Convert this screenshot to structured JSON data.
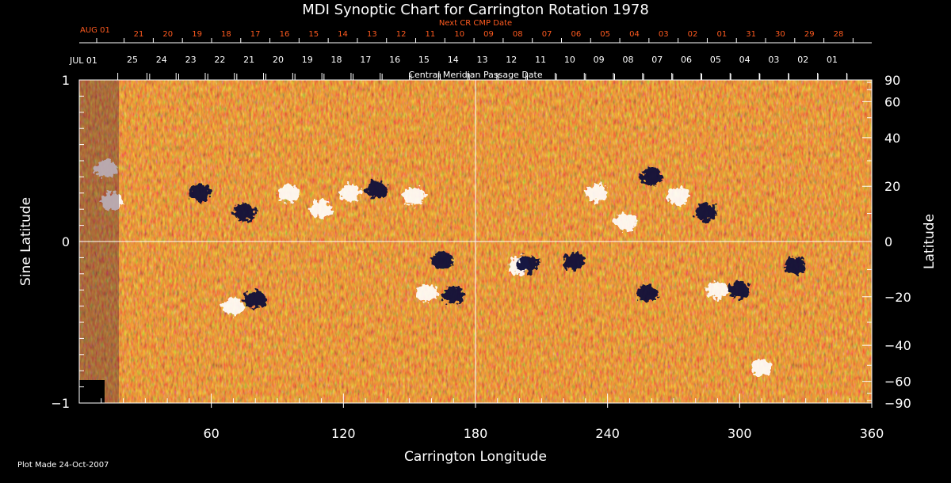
{
  "chart_data": {
    "type": "heatmap",
    "title": "MDI Synoptic Chart for Carrington Rotation 1978",
    "xlabel": "Carrington Longitude",
    "ylabel_left": "Sine Latitude",
    "ylabel_right": "Latitude",
    "xlim": [
      0,
      360
    ],
    "ylim": [
      -1,
      1
    ],
    "x_ticks": [
      60,
      120,
      180,
      240,
      300,
      360
    ],
    "y_ticks_left": [
      {
        "v": 1,
        "label": "1"
      },
      {
        "v": 0,
        "label": "0"
      },
      {
        "v": -1,
        "label": "−1"
      }
    ],
    "y_ticks_right": [
      {
        "deg": 90,
        "label": "90"
      },
      {
        "deg": 60,
        "label": "60"
      },
      {
        "deg": 40,
        "label": "40"
      },
      {
        "deg": 20,
        "label": "20"
      },
      {
        "deg": 0,
        "label": "0"
      },
      {
        "deg": -20,
        "label": "−20"
      },
      {
        "deg": -40,
        "label": "−40"
      },
      {
        "deg": -60,
        "label": "−60"
      },
      {
        "deg": -90,
        "label": "−90"
      }
    ],
    "top_axis_next": {
      "title": "Next CR CMP Date",
      "month_label": "AUG 01",
      "labels": [
        "21",
        "20",
        "19",
        "18",
        "17",
        "16",
        "15",
        "14",
        "13",
        "12",
        "11",
        "10",
        "09",
        "08",
        "07",
        "06",
        "05",
        "04",
        "03",
        "02",
        "01",
        "31",
        "30",
        "29",
        "28"
      ]
    },
    "top_axis_cmp": {
      "title": "Central Meridian Passage Date",
      "month_label": "JUL 01",
      "labels": [
        "25",
        "24",
        "23",
        "22",
        "21",
        "20",
        "19",
        "18",
        "17",
        "16",
        "15",
        "14",
        "13",
        "12",
        "11",
        "10",
        "09",
        "08",
        "07",
        "06",
        "05",
        "04",
        "03",
        "02",
        "01"
      ]
    },
    "footnote": "Plot Made 24-Oct-2007",
    "colors": {
      "background": "#000000",
      "field_neutral": "#c8541a",
      "positive_polarity": "#ffffff",
      "negative_polarity": "#0d0d3a",
      "next_axis": "#ff5a1f",
      "axes": "#ffffff"
    },
    "active_regions": [
      {
        "lon": 12,
        "sinlat": 0.45,
        "polarity": "positive"
      },
      {
        "lon": 15,
        "sinlat": 0.25,
        "polarity": "positive"
      },
      {
        "lon": 55,
        "sinlat": 0.3,
        "polarity": "negative"
      },
      {
        "lon": 75,
        "sinlat": 0.18,
        "polarity": "negative"
      },
      {
        "lon": 95,
        "sinlat": 0.3,
        "polarity": "positive"
      },
      {
        "lon": 110,
        "sinlat": 0.2,
        "polarity": "positive"
      },
      {
        "lon": 123,
        "sinlat": 0.3,
        "polarity": "positive"
      },
      {
        "lon": 135,
        "sinlat": 0.32,
        "polarity": "negative"
      },
      {
        "lon": 152,
        "sinlat": 0.28,
        "polarity": "positive"
      },
      {
        "lon": 70,
        "sinlat": -0.4,
        "polarity": "positive"
      },
      {
        "lon": 80,
        "sinlat": -0.36,
        "polarity": "negative"
      },
      {
        "lon": 165,
        "sinlat": -0.12,
        "polarity": "negative"
      },
      {
        "lon": 170,
        "sinlat": -0.33,
        "polarity": "negative"
      },
      {
        "lon": 158,
        "sinlat": -0.32,
        "polarity": "positive"
      },
      {
        "lon": 200,
        "sinlat": -0.15,
        "polarity": "positive"
      },
      {
        "lon": 204,
        "sinlat": -0.14,
        "polarity": "negative"
      },
      {
        "lon": 225,
        "sinlat": -0.12,
        "polarity": "negative"
      },
      {
        "lon": 235,
        "sinlat": 0.3,
        "polarity": "positive"
      },
      {
        "lon": 248,
        "sinlat": 0.12,
        "polarity": "positive"
      },
      {
        "lon": 260,
        "sinlat": 0.4,
        "polarity": "negative"
      },
      {
        "lon": 272,
        "sinlat": 0.28,
        "polarity": "positive"
      },
      {
        "lon": 285,
        "sinlat": 0.18,
        "polarity": "negative"
      },
      {
        "lon": 258,
        "sinlat": -0.32,
        "polarity": "negative"
      },
      {
        "lon": 290,
        "sinlat": -0.3,
        "polarity": "positive"
      },
      {
        "lon": 300,
        "sinlat": -0.3,
        "polarity": "negative"
      },
      {
        "lon": 325,
        "sinlat": -0.15,
        "polarity": "negative"
      },
      {
        "lon": 310,
        "sinlat": -0.78,
        "polarity": "positive"
      }
    ]
  }
}
